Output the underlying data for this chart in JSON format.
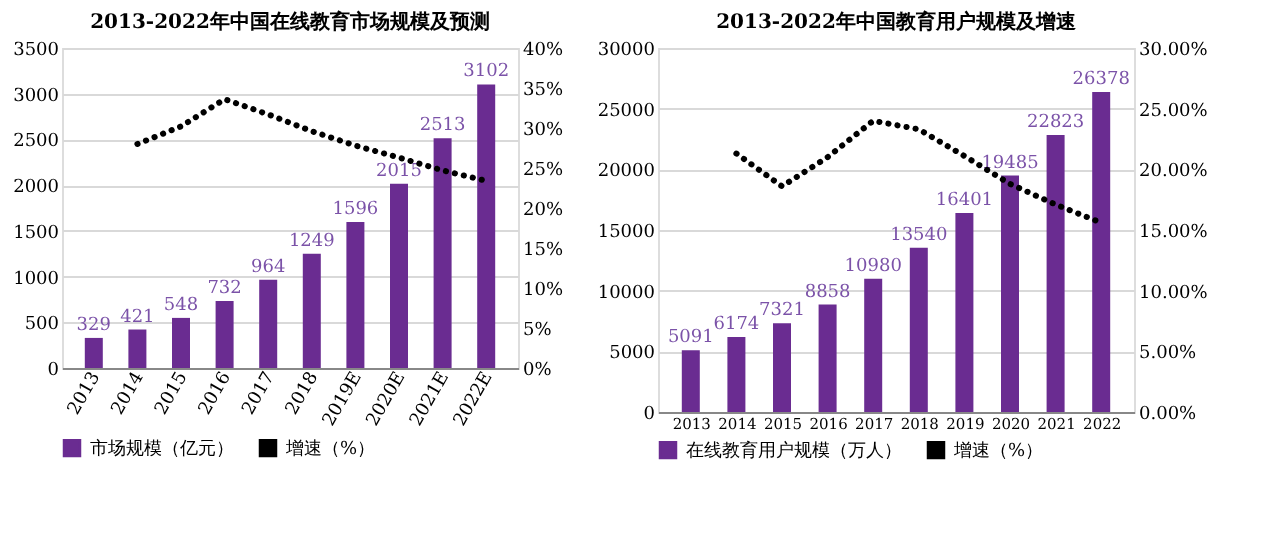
{
  "chart_data": [
    {
      "type": "bar",
      "title": "2013-2022年中国在线教育市场规模及预测",
      "categories": [
        "2013",
        "2014",
        "2015",
        "2016",
        "2017",
        "2018",
        "2019E",
        "2020E",
        "2021E",
        "2022E"
      ],
      "series": [
        {
          "name": "市场规模（亿元）",
          "color": "#6a2c91",
          "values": [
            329,
            421,
            548,
            732,
            964,
            1249,
            1596,
            2015,
            2513,
            3102
          ],
          "value_labels": [
            "329",
            "421",
            "548",
            "732",
            "964",
            "1249",
            "1596",
            "2015",
            "2513",
            "3102"
          ]
        },
        {
          "name": "增速（%）",
          "type": "line",
          "axis": "y2",
          "color": "#000000",
          "values": [
            null,
            28.0,
            30.2,
            33.6,
            31.7,
            29.6,
            27.8,
            26.3,
            24.7,
            23.4
          ]
        }
      ],
      "ylim": [
        0,
        3500
      ],
      "yticks": [
        0,
        500,
        1000,
        1500,
        2000,
        2500,
        3000,
        3500
      ],
      "y2lim": [
        0,
        40
      ],
      "y2ticks": [
        {
          "value": 0,
          "label": "0%"
        },
        {
          "value": 5,
          "label": "5%"
        },
        {
          "value": 10,
          "label": "10%"
        },
        {
          "value": 15,
          "label": "15%"
        },
        {
          "value": 20,
          "label": "20%"
        },
        {
          "value": 25,
          "label": "25%"
        },
        {
          "value": 30,
          "label": "30%"
        },
        {
          "value": 35,
          "label": "35%"
        },
        {
          "value": 40,
          "label": "40%"
        }
      ],
      "grid": "y",
      "legend": "bottom",
      "line_style": "dotted",
      "marker": "none"
    },
    {
      "type": "bar",
      "title": "2013-2022年中国教育用户规模及增速",
      "categories": [
        "2013",
        "2014",
        "2015",
        "2016",
        "2017",
        "2018",
        "2019",
        "2020",
        "2021",
        "2022"
      ],
      "series": [
        {
          "name": "在线教育用户规模（万人）",
          "color": "#6a2c91",
          "values": [
            5091,
            6174,
            7321,
            8858,
            10980,
            13540,
            16401,
            19485,
            22823,
            26378
          ],
          "value_labels": [
            "5091",
            "6174",
            "7321",
            "8858",
            "10980",
            "13540",
            "16401",
            "19485",
            "22823",
            "26378"
          ]
        },
        {
          "name": "增速（%）",
          "type": "line",
          "axis": "y2",
          "color": "#000000",
          "values": [
            null,
            21.3,
            18.6,
            21.0,
            24.0,
            23.3,
            21.1,
            18.8,
            17.1,
            15.6
          ]
        }
      ],
      "ylim": [
        0,
        30000
      ],
      "yticks": [
        0,
        5000,
        10000,
        15000,
        20000,
        25000,
        30000
      ],
      "y2lim": [
        0,
        30
      ],
      "y2ticks": [
        {
          "value": 0,
          "label": "0.00%"
        },
        {
          "value": 5,
          "label": "5.00%"
        },
        {
          "value": 10,
          "label": "10.00%"
        },
        {
          "value": 15,
          "label": "15.00%"
        },
        {
          "value": 20,
          "label": "20.00%"
        },
        {
          "value": 25,
          "label": "25.00%"
        },
        {
          "value": 30,
          "label": "30.00%"
        }
      ],
      "grid": "y",
      "legend": "bottom",
      "line_style": "dotted",
      "marker": "none"
    }
  ]
}
